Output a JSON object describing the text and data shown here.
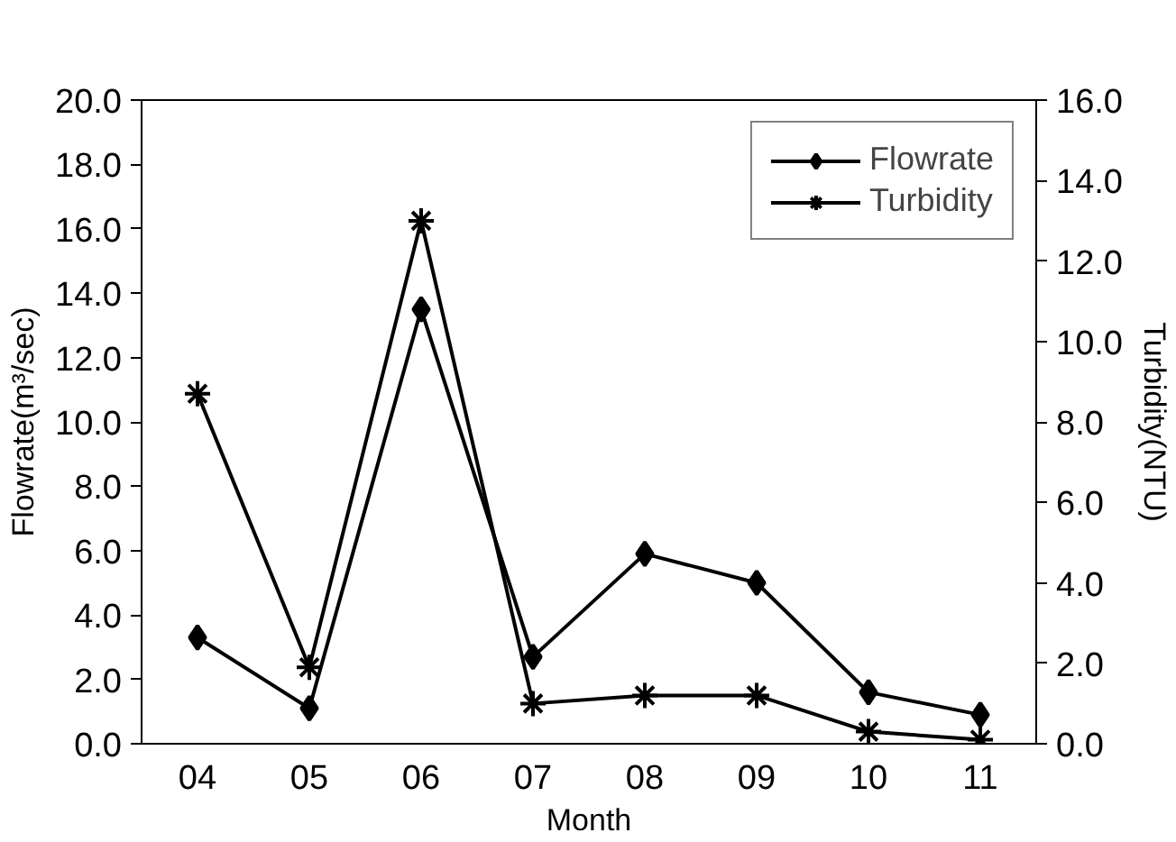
{
  "chart_data": {
    "type": "line",
    "xlabel": "Month",
    "ylabel": "Flowrate(m³/sec)",
    "y2label": "Turbidity(NTU)",
    "categories": [
      "04",
      "05",
      "06",
      "07",
      "08",
      "09",
      "10",
      "11"
    ],
    "series": [
      {
        "name": "Flowrate",
        "color": "#000000",
        "marker": "diamond",
        "values": [
          3.3,
          1.1,
          13.5,
          2.7,
          5.9,
          5.0,
          1.6,
          0.9
        ]
      },
      {
        "name": "Turbidity",
        "color": "#000000",
        "marker": "cross",
        "axis": "y2",
        "values": [
          8.7,
          1.9,
          13.0,
          1.0,
          1.2,
          1.2,
          0.3,
          0.1
        ]
      }
    ],
    "ylim": [
      0,
      20
    ],
    "yticks": [
      {
        "value": 0,
        "label": "0.0"
      },
      {
        "value": 2,
        "label": "2.0"
      },
      {
        "value": 4,
        "label": "4.0"
      },
      {
        "value": 6,
        "label": "6.0"
      },
      {
        "value": 8,
        "label": "8.0"
      },
      {
        "value": 10,
        "label": "10.0"
      },
      {
        "value": 12,
        "label": "12.0"
      },
      {
        "value": 14,
        "label": "14.0"
      },
      {
        "value": 16,
        "label": "16.0"
      },
      {
        "value": 18,
        "label": "18.0"
      },
      {
        "value": 20,
        "label": "20.0"
      }
    ],
    "y2lim": [
      0,
      16
    ],
    "y2ticks": [
      {
        "value": 0,
        "label": "0.0"
      },
      {
        "value": 2,
        "label": "2.0"
      },
      {
        "value": 4,
        "label": "4.0"
      },
      {
        "value": 6,
        "label": "6.0"
      },
      {
        "value": 8,
        "label": "8.0"
      },
      {
        "value": 10,
        "label": "10.0"
      },
      {
        "value": 12,
        "label": "12.0"
      },
      {
        "value": 14,
        "label": "14.0"
      },
      {
        "value": 16,
        "label": "16.0"
      }
    ],
    "grid": false,
    "legend": "top right",
    "line_style": "solid"
  }
}
